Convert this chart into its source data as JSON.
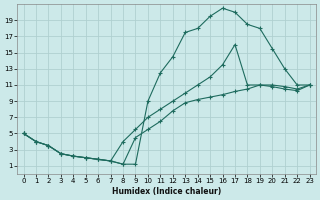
{
  "xlabel": "Humidex (Indice chaleur)",
  "bg_color": "#cce9e9",
  "grid_color": "#b0d0d0",
  "line_color": "#1e6b5e",
  "xlim": [
    -0.5,
    23.5
  ],
  "ylim": [
    0,
    21
  ],
  "xticks": [
    0,
    1,
    2,
    3,
    4,
    5,
    6,
    7,
    8,
    9,
    10,
    11,
    12,
    13,
    14,
    15,
    16,
    17,
    18,
    19,
    20,
    21,
    22,
    23
  ],
  "yticks": [
    1,
    3,
    5,
    7,
    9,
    11,
    13,
    15,
    17,
    19
  ],
  "line1_x": [
    0,
    1,
    2,
    3,
    4,
    5,
    6,
    7,
    8,
    9,
    10,
    11,
    12,
    13,
    14,
    15,
    16,
    17,
    18,
    19,
    20,
    21,
    22,
    23
  ],
  "line1_y": [
    5,
    4,
    3.5,
    2.5,
    2.2,
    2.0,
    1.8,
    1.6,
    1.2,
    4.5,
    5.5,
    6.5,
    7.8,
    8.8,
    9.2,
    9.5,
    9.8,
    10.2,
    10.5,
    11.0,
    10.8,
    10.5,
    10.3,
    11.0
  ],
  "line2_x": [
    0,
    1,
    2,
    3,
    4,
    5,
    6,
    7,
    8,
    9,
    10,
    11,
    12,
    13,
    14,
    15,
    16,
    17,
    18,
    19,
    20,
    21,
    22,
    23
  ],
  "line2_y": [
    5,
    4,
    3.5,
    2.5,
    2.2,
    2.0,
    1.8,
    1.6,
    1.2,
    1.2,
    9.0,
    12.5,
    14.5,
    17.5,
    18.0,
    19.5,
    20.5,
    20.0,
    18.5,
    18.0,
    15.5,
    13.0,
    11.0,
    11.0
  ],
  "line3_x": [
    0,
    1,
    2,
    3,
    4,
    5,
    6,
    7,
    8,
    9,
    10,
    11,
    12,
    13,
    14,
    15,
    16,
    17,
    18,
    19,
    20,
    21,
    22,
    23
  ],
  "line3_y": [
    5,
    4,
    3.5,
    2.5,
    2.2,
    2.0,
    1.8,
    1.6,
    4.0,
    5.5,
    7.0,
    8.0,
    9.0,
    10.0,
    11.0,
    12.0,
    13.5,
    16.0,
    11.0,
    11.0,
    11.0,
    10.8,
    10.5,
    11.0
  ]
}
